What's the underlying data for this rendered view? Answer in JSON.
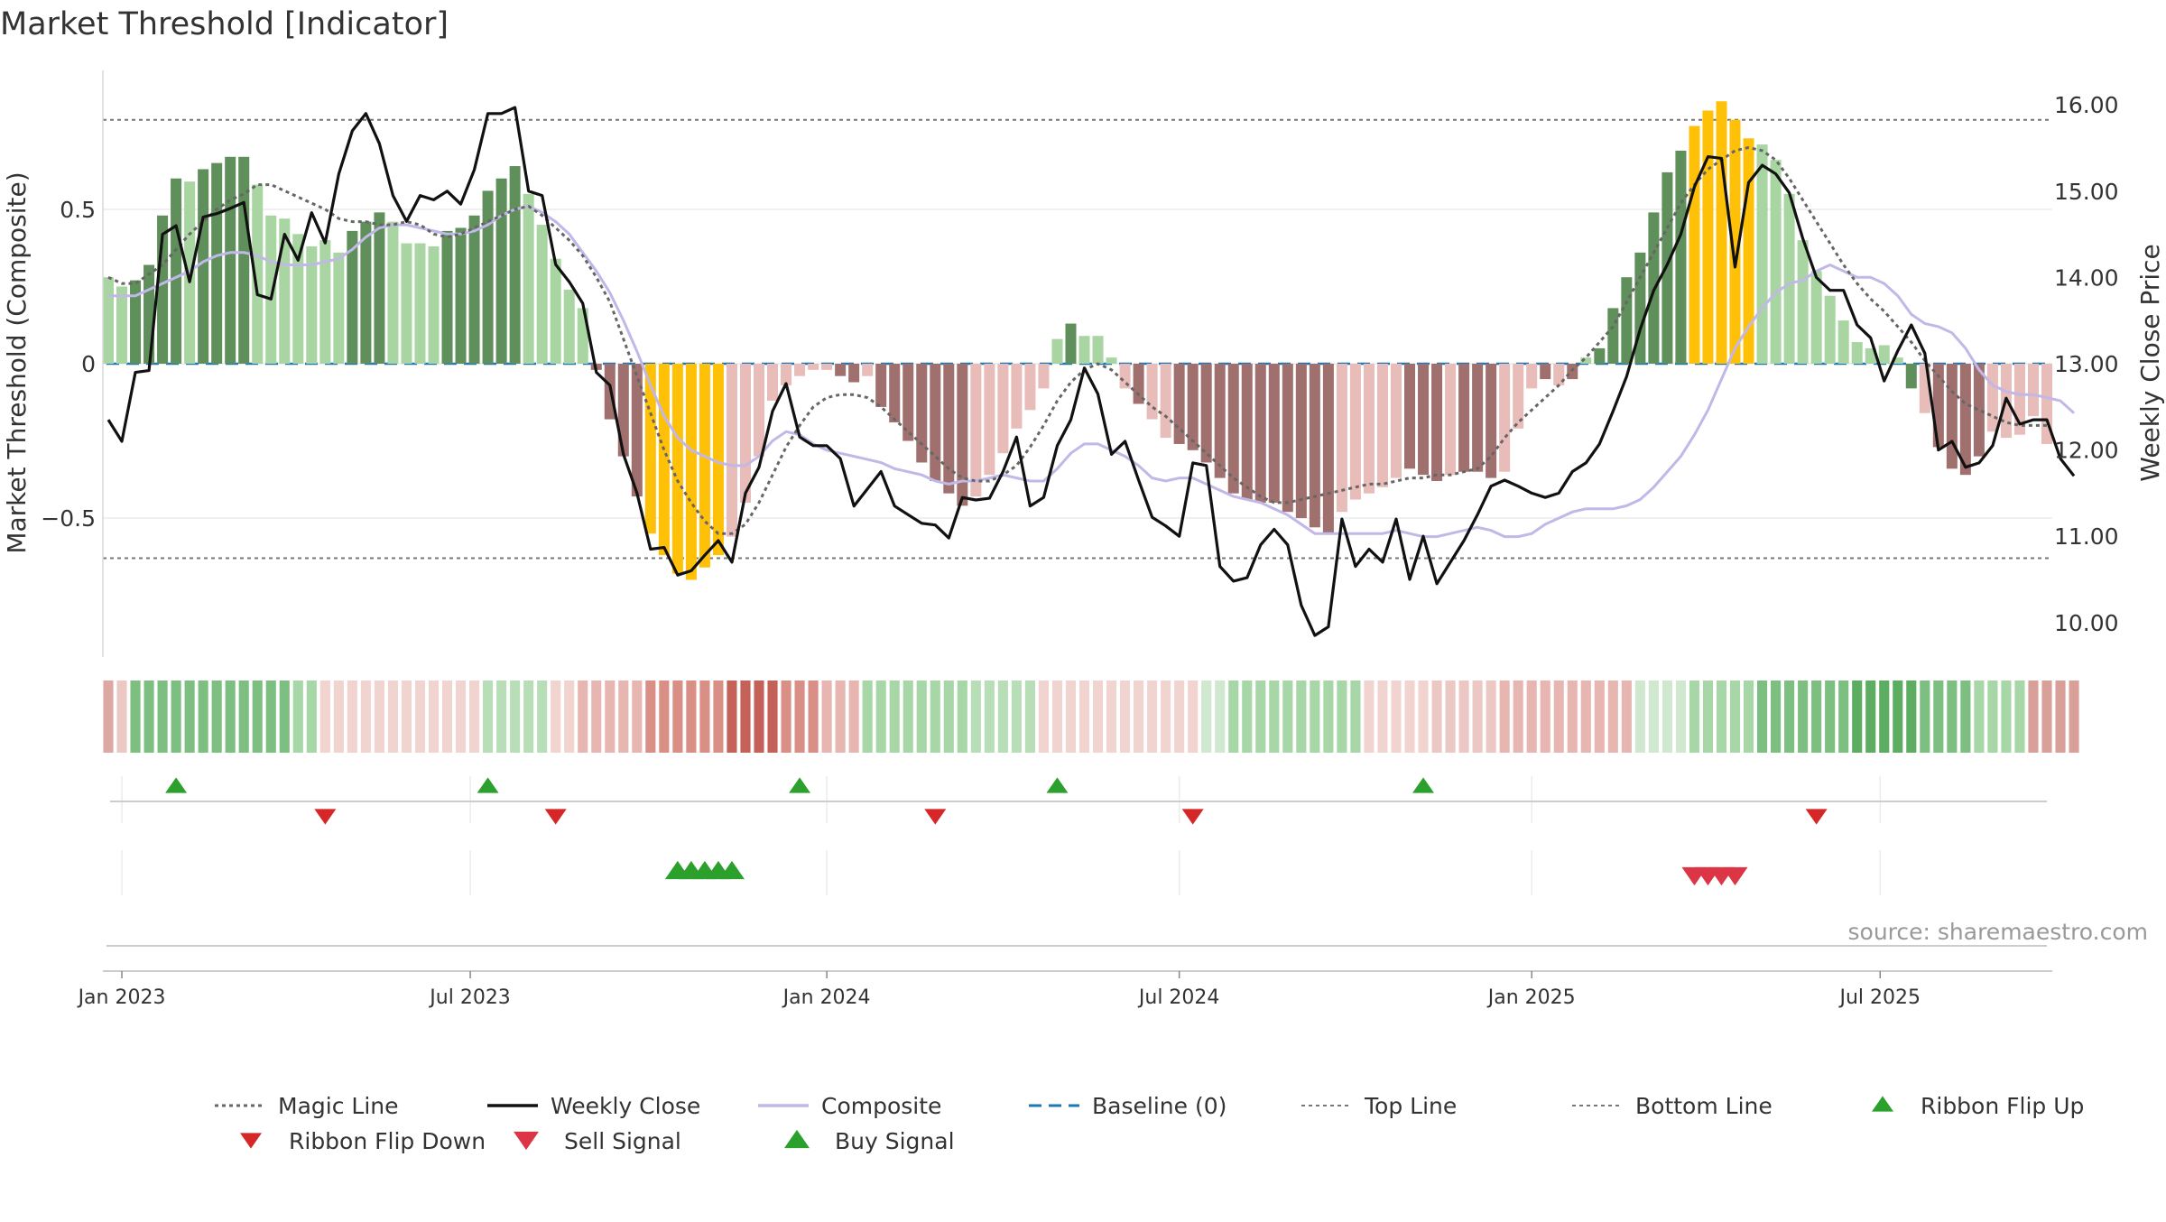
{
  "chart_data": {
    "type": "bar",
    "title": "Market Threshold [Indicator]",
    "ylabel": "Market Threshold (Composite)",
    "y2label": "Weekly Close Price",
    "source": "source: sharemaestro.com",
    "ylim": [
      -0.95,
      0.95
    ],
    "y2lim": [
      9.6,
      16.4
    ],
    "yticks": [
      {
        "value": 0.5,
        "label": "0.5"
      },
      {
        "value": 0,
        "label": "0"
      },
      {
        "value": -0.5,
        "label": "−0.5"
      }
    ],
    "y2ticks": [
      {
        "value": 16,
        "label": "16.00"
      },
      {
        "value": 15,
        "label": "15.00"
      },
      {
        "value": 14,
        "label": "14.00"
      },
      {
        "value": 13,
        "label": "13.00"
      },
      {
        "value": 12,
        "label": "12.00"
      },
      {
        "value": 11,
        "label": "11.00"
      },
      {
        "value": 10,
        "label": "10.00"
      }
    ],
    "top_line": 0.79,
    "bottom_line": -0.63,
    "xticks": [
      {
        "week": 1,
        "label": "Jan 2023"
      },
      {
        "week": 26.7,
        "label": "Jul 2023"
      },
      {
        "week": 53,
        "label": "Jan 2024"
      },
      {
        "week": 79,
        "label": "Jul 2024"
      },
      {
        "week": 105,
        "label": "Jan 2025"
      },
      {
        "week": 130.7,
        "label": "Jul 2025"
      }
    ],
    "n_weeks": 144,
    "composite_bars": [
      0.28,
      0.25,
      0.27,
      0.32,
      0.48,
      0.6,
      0.59,
      0.63,
      0.65,
      0.67,
      0.67,
      0.58,
      0.48,
      0.47,
      0.42,
      0.38,
      0.4,
      0.36,
      0.43,
      0.46,
      0.49,
      0.46,
      0.39,
      0.39,
      0.38,
      0.43,
      0.44,
      0.48,
      0.56,
      0.6,
      0.64,
      0.55,
      0.45,
      0.34,
      0.24,
      0.18,
      -0.02,
      -0.18,
      -0.3,
      -0.43,
      -0.55,
      -0.62,
      -0.68,
      -0.7,
      -0.66,
      -0.62,
      -0.56,
      -0.45,
      -0.3,
      -0.12,
      -0.07,
      -0.04,
      -0.02,
      -0.02,
      -0.04,
      -0.06,
      -0.04,
      -0.14,
      -0.19,
      -0.25,
      -0.32,
      -0.38,
      -0.42,
      -0.46,
      -0.43,
      -0.36,
      -0.29,
      -0.21,
      -0.15,
      -0.08,
      0.08,
      0.13,
      0.09,
      0.09,
      0.02,
      -0.08,
      -0.13,
      -0.18,
      -0.24,
      -0.26,
      -0.28,
      -0.32,
      -0.37,
      -0.42,
      -0.44,
      -0.45,
      -0.45,
      -0.48,
      -0.5,
      -0.53,
      -0.55,
      -0.48,
      -0.44,
      -0.42,
      -0.4,
      -0.37,
      -0.34,
      -0.36,
      -0.38,
      -0.36,
      -0.35,
      -0.35,
      -0.37,
      -0.35,
      -0.21,
      -0.08,
      -0.05,
      -0.07,
      -0.05,
      0.02,
      0.05,
      0.18,
      0.28,
      0.36,
      0.49,
      0.62,
      0.69,
      0.77,
      0.82,
      0.85,
      0.79,
      0.73,
      0.71,
      0.66,
      0.55,
      0.4,
      0.3,
      0.22,
      0.14,
      0.07,
      0.05,
      0.06,
      0.02,
      -0.08,
      -0.16,
      -0.27,
      -0.34,
      -0.36,
      -0.3,
      -0.22,
      -0.24,
      -0.23,
      -0.17,
      -0.26
    ],
    "bar_colors": [
      "#a8d5a2",
      "#a8d5a2",
      "#5f8f5a",
      "#5f8f5a",
      "#5f8f5a",
      "#5f8f5a",
      "#a8d5a2",
      "#5f8f5a",
      "#5f8f5a",
      "#5f8f5a",
      "#5f8f5a",
      "#a8d5a2",
      "#a8d5a2",
      "#a8d5a2",
      "#a8d5a2",
      "#a8d5a2",
      "#a8d5a2",
      "#a8d5a2",
      "#5f8f5a",
      "#5f8f5a",
      "#5f8f5a",
      "#a8d5a2",
      "#a8d5a2",
      "#a8d5a2",
      "#a8d5a2",
      "#5f8f5a",
      "#5f8f5a",
      "#5f8f5a",
      "#5f8f5a",
      "#5f8f5a",
      "#5f8f5a",
      "#a8d5a2",
      "#a8d5a2",
      "#a8d5a2",
      "#a8d5a2",
      "#a8d5a2",
      "#a0706e",
      "#a0706e",
      "#a0706e",
      "#a0706e",
      "#ffc107",
      "#ffc107",
      "#ffc107",
      "#ffc107",
      "#ffc107",
      "#ffc107",
      "#e8bcb8",
      "#e8bcb8",
      "#e8bcb8",
      "#e8bcb8",
      "#e8bcb8",
      "#e8bcb8",
      "#e8bcb8",
      "#e8bcb8",
      "#a0706e",
      "#a0706e",
      "#e8bcb8",
      "#a0706e",
      "#a0706e",
      "#a0706e",
      "#a0706e",
      "#a0706e",
      "#a0706e",
      "#a0706e",
      "#e8bcb8",
      "#e8bcb8",
      "#e8bcb8",
      "#e8bcb8",
      "#e8bcb8",
      "#e8bcb8",
      "#a8d5a2",
      "#5f8f5a",
      "#a8d5a2",
      "#a8d5a2",
      "#a8d5a2",
      "#e8bcb8",
      "#a0706e",
      "#e8bcb8",
      "#e8bcb8",
      "#a0706e",
      "#a0706e",
      "#a0706e",
      "#a0706e",
      "#a0706e",
      "#a0706e",
      "#a0706e",
      "#a0706e",
      "#a0706e",
      "#a0706e",
      "#a0706e",
      "#a0706e",
      "#e8bcb8",
      "#e8bcb8",
      "#e8bcb8",
      "#e8bcb8",
      "#e8bcb8",
      "#a0706e",
      "#a0706e",
      "#a0706e",
      "#e8bcb8",
      "#a0706e",
      "#a0706e",
      "#a0706e",
      "#e8bcb8",
      "#e8bcb8",
      "#e8bcb8",
      "#a0706e",
      "#e8bcb8",
      "#a0706e",
      "#a8d5a2",
      "#5f8f5a",
      "#5f8f5a",
      "#5f8f5a",
      "#5f8f5a",
      "#5f8f5a",
      "#5f8f5a",
      "#5f8f5a",
      "#ffc107",
      "#ffc107",
      "#ffc107",
      "#ffc107",
      "#ffc107",
      "#a8d5a2",
      "#a8d5a2",
      "#a8d5a2",
      "#a8d5a2",
      "#a8d5a2",
      "#a8d5a2",
      "#a8d5a2",
      "#a8d5a2",
      "#a8d5a2",
      "#a8d5a2",
      "#a8d5a2",
      "#5f8f5a",
      "#e8bcb8",
      "#a0706e",
      "#a0706e",
      "#a0706e",
      "#a0706e",
      "#e8bcb8",
      "#e8bcb8",
      "#e8bcb8",
      "#e8bcb8",
      "#e8bcb8",
      "#a0706e"
    ],
    "composite_line": [
      0.22,
      0.22,
      0.22,
      0.24,
      0.26,
      0.28,
      0.3,
      0.33,
      0.35,
      0.36,
      0.36,
      0.35,
      0.33,
      0.32,
      0.32,
      0.32,
      0.33,
      0.34,
      0.37,
      0.41,
      0.44,
      0.45,
      0.45,
      0.44,
      0.43,
      0.42,
      0.42,
      0.43,
      0.45,
      0.48,
      0.5,
      0.51,
      0.49,
      0.46,
      0.42,
      0.36,
      0.3,
      0.23,
      0.14,
      0.04,
      -0.07,
      -0.17,
      -0.24,
      -0.28,
      -0.3,
      -0.32,
      -0.33,
      -0.33,
      -0.3,
      -0.25,
      -0.22,
      -0.23,
      -0.26,
      -0.28,
      -0.29,
      -0.3,
      -0.31,
      -0.32,
      -0.34,
      -0.35,
      -0.36,
      -0.38,
      -0.39,
      -0.38,
      -0.38,
      -0.37,
      -0.36,
      -0.37,
      -0.38,
      -0.38,
      -0.34,
      -0.29,
      -0.26,
      -0.26,
      -0.28,
      -0.3,
      -0.33,
      -0.37,
      -0.38,
      -0.37,
      -0.37,
      -0.39,
      -0.41,
      -0.43,
      -0.44,
      -0.45,
      -0.47,
      -0.49,
      -0.52,
      -0.55,
      -0.55,
      -0.55,
      -0.55,
      -0.55,
      -0.55,
      -0.54,
      -0.55,
      -0.56,
      -0.56,
      -0.55,
      -0.54,
      -0.53,
      -0.54,
      -0.56,
      -0.56,
      -0.55,
      -0.52,
      -0.5,
      -0.48,
      -0.47,
      -0.47,
      -0.47,
      -0.46,
      -0.44,
      -0.4,
      -0.35,
      -0.3,
      -0.23,
      -0.15,
      -0.05,
      0.05,
      0.12,
      0.18,
      0.23,
      0.26,
      0.27,
      0.3,
      0.32,
      0.3,
      0.28,
      0.28,
      0.26,
      0.22,
      0.16,
      0.13,
      0.12,
      0.1,
      0.05,
      -0.02,
      -0.07,
      -0.09,
      -0.1,
      -0.1,
      -0.11,
      -0.12,
      -0.16
    ],
    "magic_line": [
      0.28,
      0.26,
      0.26,
      0.29,
      0.32,
      0.37,
      0.42,
      0.46,
      0.5,
      0.53,
      0.55,
      0.58,
      0.58,
      0.56,
      0.54,
      0.52,
      0.5,
      0.47,
      0.46,
      0.46,
      0.45,
      0.45,
      0.46,
      0.45,
      0.42,
      0.41,
      0.42,
      0.44,
      0.46,
      0.48,
      0.5,
      0.51,
      0.48,
      0.44,
      0.4,
      0.35,
      0.28,
      0.2,
      0.08,
      -0.04,
      -0.16,
      -0.28,
      -0.38,
      -0.45,
      -0.51,
      -0.55,
      -0.55,
      -0.52,
      -0.45,
      -0.36,
      -0.27,
      -0.2,
      -0.14,
      -0.11,
      -0.1,
      -0.1,
      -0.11,
      -0.14,
      -0.18,
      -0.22,
      -0.26,
      -0.3,
      -0.34,
      -0.37,
      -0.38,
      -0.38,
      -0.36,
      -0.33,
      -0.27,
      -0.2,
      -0.12,
      -0.06,
      -0.02,
      0.0,
      -0.02,
      -0.06,
      -0.1,
      -0.14,
      -0.17,
      -0.21,
      -0.25,
      -0.29,
      -0.33,
      -0.37,
      -0.4,
      -0.43,
      -0.45,
      -0.45,
      -0.44,
      -0.43,
      -0.42,
      -0.41,
      -0.4,
      -0.39,
      -0.39,
      -0.38,
      -0.37,
      -0.37,
      -0.36,
      -0.36,
      -0.35,
      -0.34,
      -0.3,
      -0.24,
      -0.19,
      -0.15,
      -0.11,
      -0.07,
      -0.02,
      0.02,
      0.07,
      0.12,
      0.2,
      0.28,
      0.36,
      0.44,
      0.52,
      0.58,
      0.63,
      0.66,
      0.69,
      0.7,
      0.69,
      0.66,
      0.6,
      0.53,
      0.46,
      0.39,
      0.32,
      0.26,
      0.21,
      0.17,
      0.12,
      0.07,
      0.01,
      -0.04,
      -0.09,
      -0.13,
      -0.15,
      -0.17,
      -0.19,
      -0.2,
      -0.2,
      -0.2
    ],
    "weekly_close": [
      12.35,
      12.1,
      12.9,
      12.92,
      14.5,
      14.6,
      13.95,
      14.7,
      14.74,
      14.8,
      14.87,
      13.8,
      13.75,
      14.5,
      14.2,
      14.75,
      14.4,
      15.2,
      15.7,
      15.9,
      15.55,
      14.95,
      14.65,
      14.95,
      14.9,
      15.0,
      14.85,
      15.25,
      15.9,
      15.9,
      15.97,
      15.0,
      14.95,
      14.15,
      13.95,
      13.7,
      12.9,
      12.75,
      11.95,
      11.5,
      10.85,
      10.87,
      10.55,
      10.6,
      10.78,
      10.95,
      10.7,
      11.5,
      11.8,
      12.45,
      12.77,
      12.15,
      12.05,
      12.05,
      11.9,
      11.35,
      11.55,
      11.75,
      11.35,
      11.25,
      11.15,
      11.13,
      10.98,
      11.45,
      11.42,
      11.44,
      11.75,
      12.15,
      11.35,
      11.45,
      12.05,
      12.35,
      12.95,
      12.65,
      11.95,
      12.1,
      11.65,
      11.22,
      11.12,
      11.0,
      11.85,
      11.82,
      10.65,
      10.48,
      10.52,
      10.9,
      11.08,
      10.9,
      10.2,
      9.85,
      9.95,
      11.2,
      10.65,
      10.85,
      10.7,
      11.2,
      10.5,
      11.0,
      10.45,
      10.7,
      10.95,
      11.25,
      11.58,
      11.65,
      11.58,
      11.5,
      11.45,
      11.5,
      11.75,
      11.85,
      12.07,
      12.45,
      12.85,
      13.4,
      13.85,
      14.15,
      14.5,
      15.05,
      15.4,
      15.38,
      14.12,
      15.1,
      15.3,
      15.2,
      14.98,
      14.45,
      14.0,
      13.85,
      13.85,
      13.45,
      13.3,
      12.8,
      13.15,
      13.45,
      13.12,
      12.0,
      12.1,
      11.8,
      11.85,
      12.05,
      12.6,
      12.3,
      12.35,
      12.35,
      11.9,
      11.7
    ],
    "ribbon_colors": [
      "#dda8a3",
      "#ecc8c4",
      "#7dbf80",
      "#7dbf80",
      "#7dbf80",
      "#7dbf80",
      "#7dbf80",
      "#7dbf80",
      "#7dbf80",
      "#7dbf80",
      "#7dbf80",
      "#7dbf80",
      "#7dbf80",
      "#7dbf80",
      "#a7d6a7",
      "#a7d6a7",
      "#f1d3d0",
      "#f1d3d0",
      "#f1d3d0",
      "#f1d3d0",
      "#f1d3d0",
      "#f1d3d0",
      "#f1d3d0",
      "#f1d3d0",
      "#f1d3d0",
      "#f1d3d0",
      "#f1d3d0",
      "#f1d3d0",
      "#b8deb8",
      "#b8deb8",
      "#b8deb8",
      "#b8deb8",
      "#b8deb8",
      "#f1d3d0",
      "#f1d3d0",
      "#e7b6b1",
      "#e7b6b1",
      "#e7b6b1",
      "#e7b6b1",
      "#e7b6b1",
      "#d98e86",
      "#d98e86",
      "#d98e86",
      "#d98e86",
      "#d98e86",
      "#d98e86",
      "#c4625a",
      "#c4625a",
      "#c4625a",
      "#c4625a",
      "#d98e86",
      "#d98e86",
      "#d98e86",
      "#e7b6b1",
      "#e7b6b1",
      "#e7b6b1",
      "#a7d6a7",
      "#a7d6a7",
      "#a7d6a7",
      "#a7d6a7",
      "#a7d6a7",
      "#a7d6a7",
      "#a7d6a7",
      "#a7d6a7",
      "#b8deb8",
      "#b8deb8",
      "#b8deb8",
      "#b8deb8",
      "#b8deb8",
      "#f1d3d0",
      "#f1d3d0",
      "#f1d3d0",
      "#f1d3d0",
      "#f1d3d0",
      "#f1d3d0",
      "#f1d3d0",
      "#f1d3d0",
      "#f1d3d0",
      "#f1d3d0",
      "#f1d3d0",
      "#f1d3d0",
      "#cfe8cf",
      "#cfe8cf",
      "#a7d6a7",
      "#a7d6a7",
      "#a7d6a7",
      "#a7d6a7",
      "#a7d6a7",
      "#a7d6a7",
      "#a7d6a7",
      "#a7d6a7",
      "#a7d6a7",
      "#a7d6a7",
      "#f1d3d0",
      "#f1d3d0",
      "#f1d3d0",
      "#f1d3d0",
      "#f1d3d0",
      "#ecc8c4",
      "#ecc8c4",
      "#ecc8c4",
      "#ecc8c4",
      "#ecc8c4",
      "#e7b6b1",
      "#e7b6b1",
      "#e7b6b1",
      "#e7b6b1",
      "#e7b6b1",
      "#e7b6b1",
      "#e7b6b1",
      "#e7b6b1",
      "#e7b6b1",
      "#e7b6b1",
      "#cfe8cf",
      "#cfe8cf",
      "#cfe8cf",
      "#cfe8cf",
      "#a7d6a7",
      "#a7d6a7",
      "#a7d6a7",
      "#a7d6a7",
      "#a7d6a7",
      "#7dbf80",
      "#7dbf80",
      "#7dbf80",
      "#7dbf80",
      "#7dbf80",
      "#7dbf80",
      "#7dbf80",
      "#5cad62",
      "#5cad62",
      "#5cad62",
      "#5cad62",
      "#5cad62",
      "#7dbf80",
      "#7dbf80",
      "#7dbf80",
      "#7dbf80",
      "#a7d6a7",
      "#a7d6a7",
      "#a7d6a7",
      "#a7d6a7",
      "#d9a09a",
      "#d9a09a",
      "#d9a09a",
      "#d9a09a"
    ],
    "ribbon_flip_up": [
      5,
      28,
      51,
      70,
      97
    ],
    "ribbon_flip_down": [
      16,
      33,
      61,
      80,
      126
    ],
    "buy_signal": [
      42,
      43,
      44,
      45,
      46
    ],
    "sell_signal": [
      117,
      118,
      119,
      120
    ],
    "legend": [
      {
        "key": "magic",
        "label": "Magic Line"
      },
      {
        "key": "close",
        "label": "Weekly Close"
      },
      {
        "key": "composite",
        "label": "Composite"
      },
      {
        "key": "baseline",
        "label": "Baseline (0)"
      },
      {
        "key": "top",
        "label": "Top Line"
      },
      {
        "key": "bottom",
        "label": "Bottom Line"
      },
      {
        "key": "flipup",
        "label": "Ribbon Flip Up"
      },
      {
        "key": "flipdown",
        "label": "Ribbon Flip Down"
      },
      {
        "key": "sell",
        "label": "Sell Signal"
      },
      {
        "key": "buy",
        "label": "Buy Signal"
      }
    ],
    "colors": {
      "close": "#111111",
      "composite": "#c1b8e8",
      "magic": "#666666",
      "baseline": "#1f77b4",
      "refline": "#777777",
      "grid": "#ebebeb",
      "flip_up": "#2ca02c",
      "flip_down": "#d62728",
      "buy": "#2ca02c",
      "sell": "#dc3545"
    }
  }
}
